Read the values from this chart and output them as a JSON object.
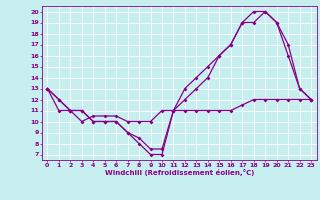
{
  "xlabel": "Windchill (Refroidissement éolien,°C)",
  "ylabel": "",
  "xlim": [
    -0.5,
    23.5
  ],
  "ylim": [
    6.5,
    20.5
  ],
  "xticks": [
    0,
    1,
    2,
    3,
    4,
    5,
    6,
    7,
    8,
    9,
    10,
    11,
    12,
    13,
    14,
    15,
    16,
    17,
    18,
    19,
    20,
    21,
    22,
    23
  ],
  "yticks": [
    7,
    8,
    9,
    10,
    11,
    12,
    13,
    14,
    15,
    16,
    17,
    18,
    19,
    20
  ],
  "bg_color": "#c8eff0",
  "line_color": "#880088",
  "grid_color": "#b0dde0",
  "line1_x": [
    0,
    1,
    2,
    3,
    4,
    5,
    6,
    7,
    8,
    9,
    10,
    11,
    12,
    13,
    14,
    15,
    16,
    17,
    18,
    19,
    20,
    21,
    22,
    23
  ],
  "line1_y": [
    13,
    12,
    11,
    11,
    10,
    10,
    10,
    9,
    8,
    7,
    7,
    11,
    12,
    13,
    14,
    16,
    17,
    19,
    20,
    20,
    19,
    16,
    13,
    12
  ],
  "line2_x": [
    0,
    1,
    2,
    3,
    4,
    5,
    6,
    7,
    8,
    9,
    10,
    11,
    12,
    13,
    14,
    15,
    16,
    17,
    18,
    19,
    20,
    21,
    22,
    23
  ],
  "line2_y": [
    13,
    12,
    11,
    11,
    10,
    10,
    10,
    9,
    8.5,
    7.5,
    7.5,
    11,
    13,
    14,
    15,
    16,
    17,
    19,
    19,
    20,
    19,
    17,
    13,
    12
  ],
  "line3_x": [
    0,
    1,
    2,
    3,
    4,
    5,
    6,
    7,
    8,
    9,
    10,
    11,
    12,
    13,
    14,
    15,
    16,
    17,
    18,
    19,
    20,
    21,
    22,
    23
  ],
  "line3_y": [
    13,
    11,
    11,
    10,
    10.5,
    10.5,
    10.5,
    10,
    10,
    10,
    11,
    11,
    11,
    11,
    11,
    11,
    11,
    11.5,
    12,
    12,
    12,
    12,
    12,
    12
  ]
}
